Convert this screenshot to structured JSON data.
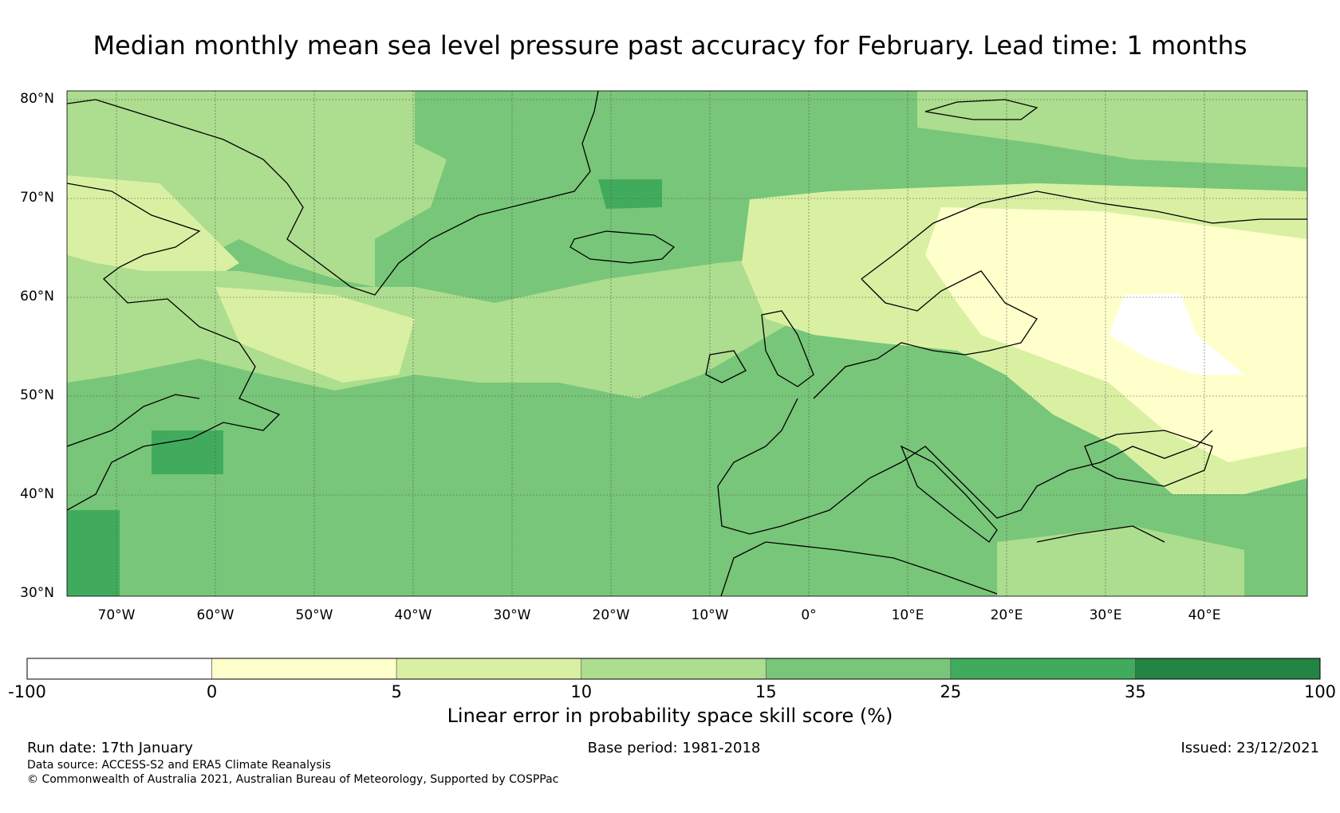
{
  "title": "Median monthly mean sea level pressure past accuracy for February. Lead time: 1 months",
  "lat_labels": [
    "80°N",
    "70°N",
    "60°N",
    "50°N",
    "40°N",
    "30°N"
  ],
  "lon_labels": [
    "70°W",
    "60°W",
    "50°W",
    "40°W",
    "30°W",
    "20°W",
    "10°W",
    "0°",
    "10°E",
    "20°E",
    "30°E",
    "40°E"
  ],
  "colorbar": {
    "label": "Linear error in probability space skill score (%)",
    "ticks": [
      "-100",
      "0",
      "5",
      "10",
      "15",
      "25",
      "35",
      "100"
    ],
    "colors": [
      "#ffffff",
      "#ffffcc",
      "#d9f0a3",
      "#addd8e",
      "#78c679",
      "#41ab5d",
      "#238443"
    ]
  },
  "footer": {
    "run_date": "Run date: 17th January",
    "base_period": "Base period: 1981-2018",
    "issued": "Issued: 23/12/2021",
    "data_source": "Data source: ACCESS-S2 and ERA5 Climate Reanalysis",
    "copyright": "© Commonwealth of Australia 2021, Australian Bureau of Meteorology, Supported by COSPPac"
  }
}
